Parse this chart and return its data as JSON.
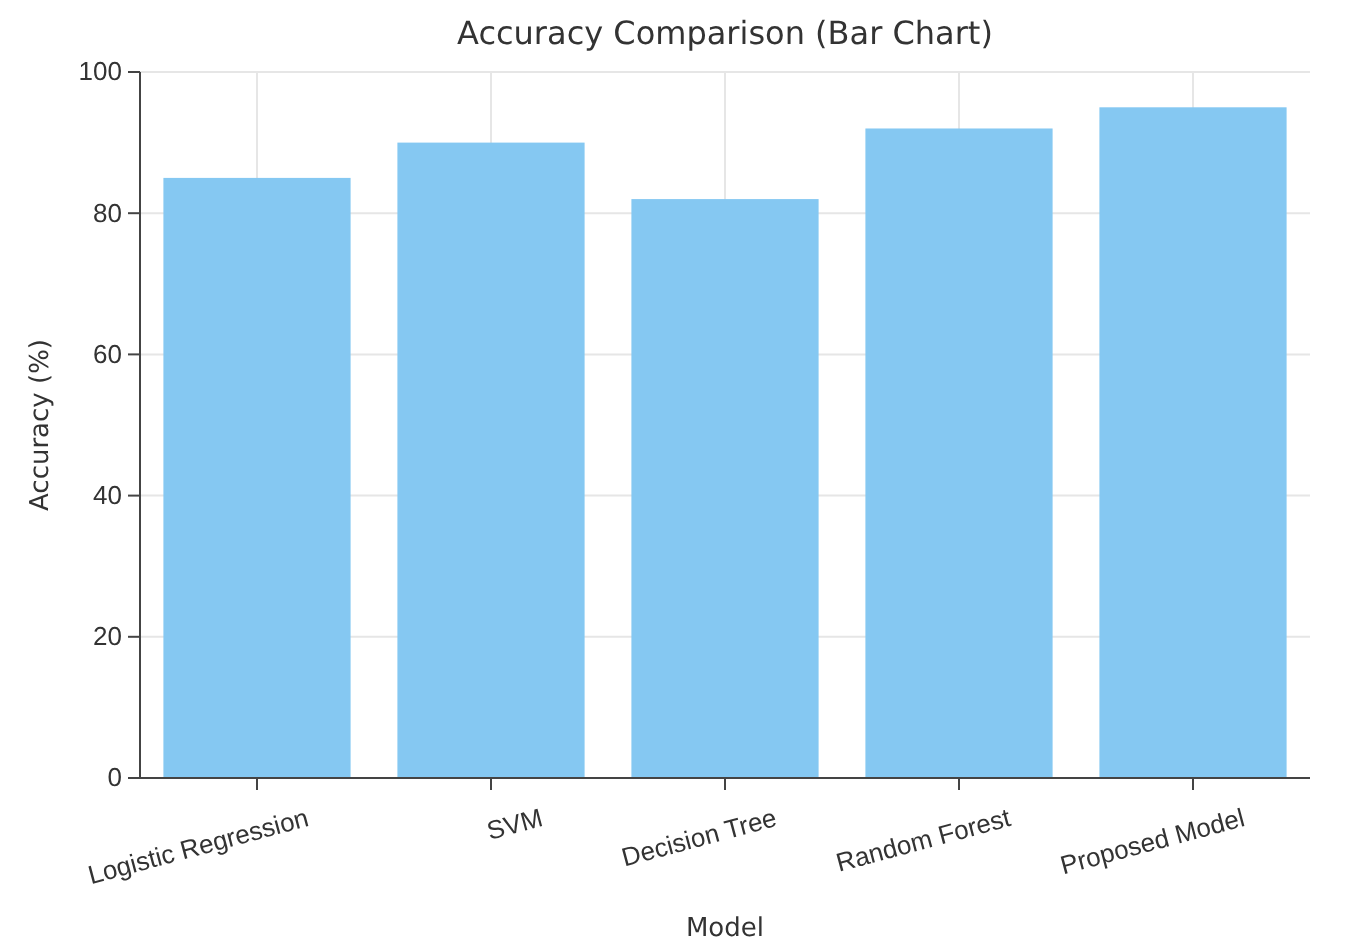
{
  "chart_data": {
    "type": "bar",
    "title": "Accuracy Comparison (Bar Chart)",
    "xlabel": "Model",
    "ylabel": "Accuracy (%)",
    "categories": [
      "Logistic Regression",
      "SVM",
      "Decision Tree",
      "Random Forest",
      "Proposed Model"
    ],
    "values": [
      85,
      90,
      82,
      92,
      95
    ],
    "color": "#85c8f2",
    "ylim": [
      0,
      100
    ],
    "yticks": [
      0,
      20,
      40,
      60,
      80,
      100
    ],
    "grid": true
  }
}
